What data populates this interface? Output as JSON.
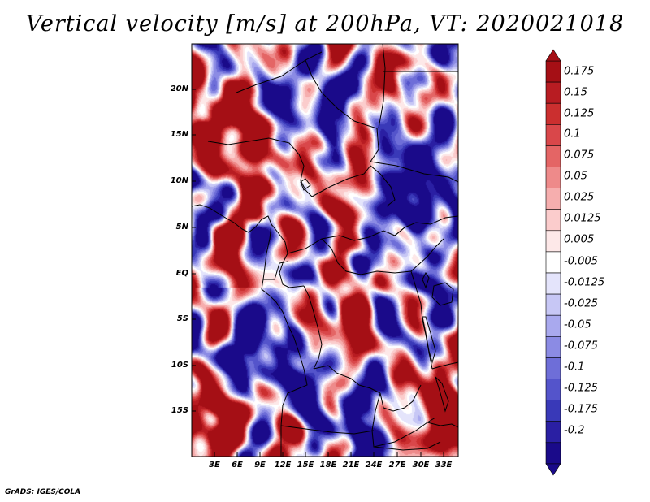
{
  "title": "Vertical velocity [m/s] at 200hPa, VT: 2020021018",
  "footer": "GrADS: IGES/COLA",
  "latitude_labels": [
    "20N",
    "15N",
    "10N",
    "5N",
    "EQ",
    "5S",
    "10S",
    "15S"
  ],
  "longitude_labels": [
    "3E",
    "6E",
    "9E",
    "12E",
    "15E",
    "18E",
    "21E",
    "24E",
    "27E",
    "30E",
    "33E"
  ],
  "colorbar": {
    "labels": [
      "0.175",
      "0.15",
      "0.125",
      "0.1",
      "0.075",
      "0.05",
      "0.025",
      "0.0125",
      "0.005",
      "-0.005",
      "-0.0125",
      "-0.025",
      "-0.05",
      "-0.075",
      "-0.1",
      "-0.125",
      "-0.175",
      "-0.2"
    ],
    "colors": [
      "#a50f15",
      "#b81c22",
      "#cb2f2f",
      "#d9474a",
      "#e46565",
      "#ee8a8a",
      "#f6aeae",
      "#fbcccc",
      "#fde8e8",
      "#ffffff",
      "#e4e4fb",
      "#c7c7f5",
      "#a9a9ee",
      "#8b8be4",
      "#6e6ed8",
      "#5454cb",
      "#3939b8",
      "#2a1fa3",
      "#1a0a8a"
    ]
  }
}
